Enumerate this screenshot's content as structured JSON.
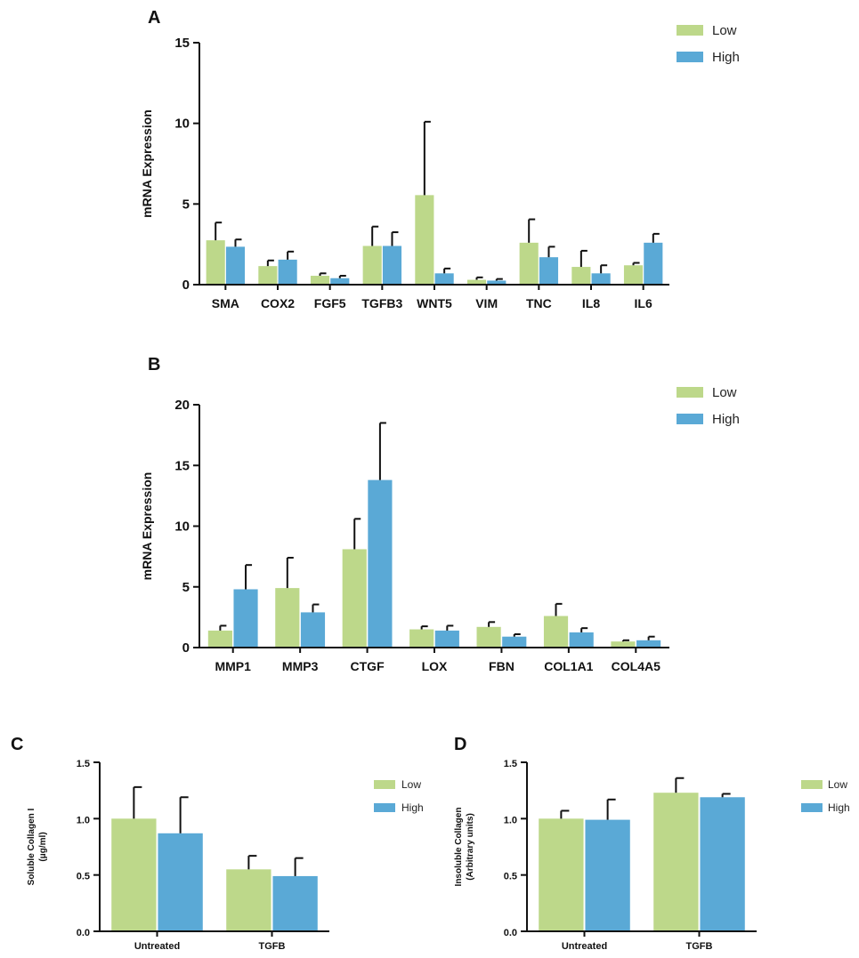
{
  "colors": {
    "low": "#bdd88a",
    "high": "#5aa9d6"
  },
  "legend": {
    "low": "Low",
    "high": "High"
  },
  "chart_data": [
    {
      "panel": "A",
      "type": "bar",
      "ylabel": "mRNA Expression",
      "ylim": [
        0,
        15
      ],
      "yticks": [
        0,
        5,
        10,
        15
      ],
      "legend_position": "top-right",
      "categories": [
        "SMA",
        "COX2",
        "FGF5",
        "TGFB3",
        "WNT5",
        "VIM",
        "TNC",
        "IL8",
        "IL6"
      ],
      "series": [
        {
          "name": "Low",
          "values": [
            2.75,
            1.15,
            0.55,
            2.4,
            5.55,
            0.3,
            2.6,
            1.1,
            1.2
          ],
          "errors": [
            1.1,
            0.35,
            0.15,
            1.2,
            4.55,
            0.15,
            1.45,
            1.0,
            0.15
          ]
        },
        {
          "name": "High",
          "values": [
            2.35,
            1.55,
            0.4,
            2.4,
            0.7,
            0.25,
            1.7,
            0.7,
            2.6
          ],
          "errors": [
            0.45,
            0.5,
            0.15,
            0.85,
            0.3,
            0.1,
            0.65,
            0.5,
            0.55
          ]
        }
      ]
    },
    {
      "panel": "B",
      "type": "bar",
      "ylabel": "mRNA Expression",
      "ylim": [
        0,
        20
      ],
      "yticks": [
        0,
        5,
        10,
        15,
        20
      ],
      "legend_position": "top-right",
      "categories": [
        "MMP1",
        "MMP3",
        "CTGF",
        "LOX",
        "FBN",
        "COL1A1",
        "COL4A5"
      ],
      "series": [
        {
          "name": "Low",
          "values": [
            1.4,
            4.9,
            8.1,
            1.5,
            1.7,
            2.6,
            0.5
          ],
          "errors": [
            0.4,
            2.5,
            2.5,
            0.25,
            0.4,
            1.0,
            0.1
          ]
        },
        {
          "name": "High",
          "values": [
            4.8,
            2.9,
            13.8,
            1.4,
            0.9,
            1.25,
            0.6
          ],
          "errors": [
            2.0,
            0.65,
            4.7,
            0.4,
            0.2,
            0.35,
            0.3
          ]
        }
      ]
    },
    {
      "panel": "C",
      "type": "bar",
      "ylabel_lines": [
        "Soluble Collagen I",
        "(μg/ml)"
      ],
      "ylim": [
        0,
        1.5
      ],
      "yticks": [
        0.0,
        0.5,
        1.0,
        1.5
      ],
      "ytick_labels": [
        "0.0",
        "0.5",
        "1.0",
        "1.5"
      ],
      "legend_position": "top-right",
      "categories": [
        "Untreated",
        "TGFB"
      ],
      "series": [
        {
          "name": "Low",
          "values": [
            1.0,
            0.55
          ],
          "errors": [
            0.28,
            0.12
          ]
        },
        {
          "name": "High",
          "values": [
            0.87,
            0.49
          ],
          "errors": [
            0.32,
            0.16
          ]
        }
      ]
    },
    {
      "panel": "D",
      "type": "bar",
      "ylabel_lines": [
        "Insoluble Collagen",
        "(Arbitrary units)"
      ],
      "ylim": [
        0,
        1.5
      ],
      "yticks": [
        0.0,
        0.5,
        1.0,
        1.5
      ],
      "ytick_labels": [
        "0.0",
        "0.5",
        "1.0",
        "1.5"
      ],
      "legend_position": "top-right",
      "categories": [
        "Untreated",
        "TGFB"
      ],
      "series": [
        {
          "name": "Low",
          "values": [
            1.0,
            1.23
          ],
          "errors": [
            0.07,
            0.13
          ]
        },
        {
          "name": "High",
          "values": [
            0.99,
            1.19
          ],
          "errors": [
            0.18,
            0.03
          ]
        }
      ]
    }
  ]
}
